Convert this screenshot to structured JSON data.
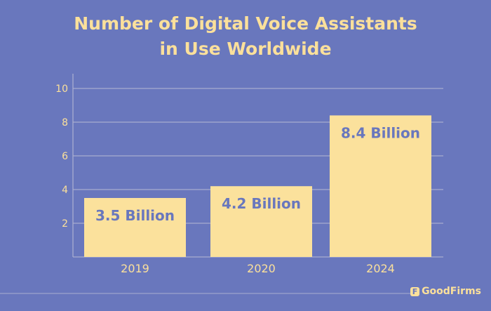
{
  "chart_data": {
    "type": "bar",
    "title": "Number of Digital Voice Assistants in Use Worldwide",
    "title_lines": [
      "Number of Digital Voice Assistants",
      "in Use Worldwide"
    ],
    "categories": [
      "2019",
      "2020",
      "2024"
    ],
    "values": [
      3.5,
      4.2,
      8.4
    ],
    "data_labels": [
      "3.5 Billion",
      "4.2 Billion",
      "8.4 Billion"
    ],
    "yticks": [
      "2",
      "4",
      "6",
      "8",
      "10"
    ],
    "ylim": [
      0,
      10
    ],
    "grid": true,
    "xlabel": "",
    "ylabel": ""
  },
  "colors": {
    "background": "#6977bd",
    "bar": "#fbe19c",
    "label": "#6977bd",
    "text": "#fbe09b",
    "grid": "#a9add0"
  },
  "brand": "GoodFirms"
}
